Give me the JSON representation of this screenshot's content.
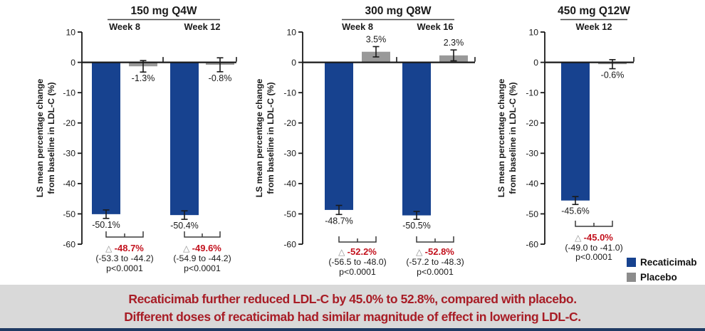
{
  "chart_data": {
    "type": "bar",
    "title": "",
    "ylabel_line1": "LS mean percentage change",
    "ylabel_line2": "from baseline in LDL-C (%)",
    "ylim": [
      -60,
      10
    ],
    "yticks": [
      10,
      0,
      -10,
      -20,
      -30,
      -40,
      -50,
      -60
    ],
    "unit": "%",
    "series_names": [
      "Recaticimab",
      "Placebo"
    ],
    "panels": [
      {
        "title": "150 mg Q4W",
        "groups": [
          {
            "week": "Week 8",
            "recaticimab": {
              "value": -50.1,
              "label": "-50.1%",
              "err": 1.4
            },
            "placebo": {
              "value": -1.3,
              "label": "-1.3%",
              "err": 1.9
            },
            "difference": {
              "delta": "-48.7%",
              "ci": "(-53.3 to -44.2)",
              "p": "p<0.0001"
            }
          },
          {
            "week": "Week 12",
            "recaticimab": {
              "value": -50.4,
              "label": "-50.4%",
              "err": 1.4
            },
            "placebo": {
              "value": -0.8,
              "label": "-0.8%",
              "err": 2.3
            },
            "difference": {
              "delta": "-49.6%",
              "ci": "(-54.9 to -44.2)",
              "p": "p<0.0001"
            }
          }
        ]
      },
      {
        "title": "300 mg Q8W",
        "groups": [
          {
            "week": "Week 8",
            "recaticimab": {
              "value": -48.7,
              "label": "-48.7%",
              "err": 1.5
            },
            "placebo": {
              "value": 3.5,
              "label": "3.5%",
              "err": 1.7
            },
            "difference": {
              "delta": "-52.2%",
              "ci": "(-56.5 to -48.0)",
              "p": "p<0.0001"
            }
          },
          {
            "week": "Week 16",
            "recaticimab": {
              "value": -50.5,
              "label": "-50.5%",
              "err": 1.3
            },
            "placebo": {
              "value": 2.3,
              "label": "2.3%",
              "err": 1.8
            },
            "difference": {
              "delta": "-52.8%",
              "ci": "(-57.2 to -48.3)",
              "p": "p<0.0001"
            }
          }
        ]
      },
      {
        "title": "450 mg Q12W",
        "groups": [
          {
            "week": "Week 12",
            "recaticimab": {
              "value": -45.6,
              "label": "-45.6%",
              "err": 1.3
            },
            "placebo": {
              "value": -0.6,
              "label": "-0.6%",
              "err": 1.5
            },
            "difference": {
              "delta": "-45.0%",
              "ci": "(-49.0 to -41.0)",
              "p": "p<0.0001"
            }
          }
        ]
      }
    ]
  },
  "legend": {
    "items": [
      {
        "label": "Recaticimab",
        "color": "#17428F"
      },
      {
        "label": "Placebo",
        "color": "#8C8C8C"
      }
    ]
  },
  "banner": {
    "line1": "Recaticimab further reduced LDL-C by 45.0% to 52.8%, compared with placebo.",
    "line2": "Different doses of recaticimab had similar magnitude of effect in lowering LDL-C.",
    "text_color": "#A81D26",
    "bg_color": "#D9D9D9"
  },
  "colors": {
    "recaticimab_bar": "#17428F",
    "placebo_bar": "#999999",
    "axis": "#1A1A1A",
    "delta_red": "#C3121E",
    "triangle_gray": "#8F8F8F",
    "bottom_strip": "#1F3A63"
  }
}
